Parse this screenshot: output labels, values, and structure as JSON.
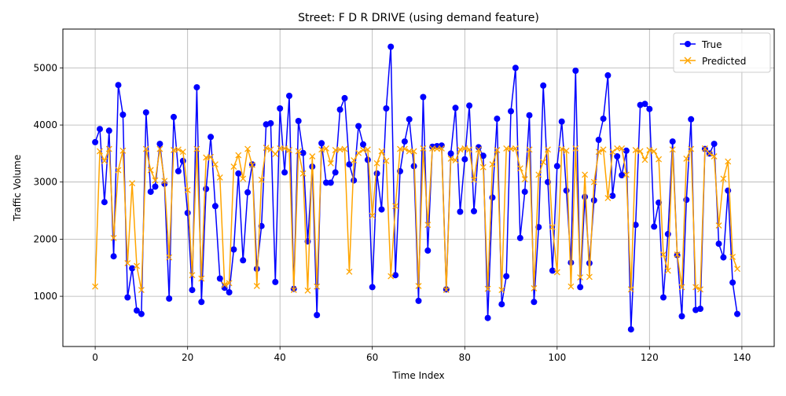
{
  "chart_data": {
    "type": "line",
    "title": "Street: F D R DRIVE (using demand feature)",
    "xlabel": "Time Index",
    "ylabel": "Traffic Volume",
    "xlim": [
      -7,
      147
    ],
    "ylim": [
      120,
      5680
    ],
    "x_ticks": [
      0,
      20,
      40,
      60,
      80,
      100,
      120,
      140
    ],
    "y_ticks": [
      1000,
      2000,
      3000,
      4000,
      5000
    ],
    "grid": true,
    "legend_position": "top-right",
    "series": [
      {
        "name": "True",
        "color": "#0000ff",
        "marker": "circle",
        "values": [
          3700,
          3930,
          2650,
          3900,
          1700,
          4700,
          4180,
          980,
          1490,
          750,
          690,
          4220,
          2830,
          2920,
          3670,
          2970,
          960,
          4140,
          3190,
          3370,
          2460,
          1110,
          4660,
          900,
          2880,
          3790,
          2580,
          1310,
          1150,
          1070,
          1820,
          3150,
          1630,
          2820,
          3310,
          1480,
          2230,
          4010,
          4030,
          1250,
          4290,
          3170,
          4510,
          1130,
          4070,
          3510,
          1960,
          3270,
          670,
          3680,
          2990,
          2990,
          3170,
          4270,
          4470,
          3310,
          3030,
          3980,
          3660,
          3390,
          1160,
          3150,
          2520,
          4290,
          5370,
          1370,
          3190,
          3710,
          4100,
          3280,
          920,
          4490,
          1800,
          3620,
          3630,
          3640,
          1120,
          3500,
          4300,
          2480,
          3400,
          4340,
          2490,
          3610,
          3460,
          620,
          2730,
          4110,
          860,
          1350,
          4240,
          5000,
          2020,
          2830,
          4170,
          900,
          2210,
          4690,
          3000,
          1450,
          3280,
          4060,
          2850,
          1590,
          4950,
          1160,
          2740,
          1580,
          2680,
          3740,
          4110,
          4870,
          2760,
          3450,
          3120,
          3550,
          420,
          2250,
          4350,
          4370,
          4280,
          2220,
          2640,
          980,
          2090,
          3710,
          1720,
          650,
          2690,
          4100,
          760,
          780,
          3580,
          3500,
          3670,
          1920,
          1680,
          2850,
          1240,
          690
        ]
      },
      {
        "name": "Predicted",
        "color": "#ffa500",
        "marker": "x",
        "values": [
          1170,
          3540,
          3370,
          3580,
          2020,
          3210,
          3550,
          1580,
          2980,
          1530,
          1110,
          3580,
          3210,
          3030,
          3580,
          3020,
          1680,
          3560,
          3570,
          3530,
          2860,
          1370,
          3580,
          1310,
          3430,
          3440,
          3310,
          3080,
          1200,
          1230,
          3270,
          3470,
          3060,
          3580,
          3300,
          1180,
          3040,
          3600,
          3570,
          3490,
          3590,
          3590,
          3560,
          1110,
          3540,
          3150,
          1100,
          3450,
          1170,
          3570,
          3590,
          3330,
          3560,
          3570,
          3580,
          1430,
          3380,
          3510,
          3560,
          3570,
          2410,
          3330,
          3540,
          3370,
          1350,
          2580,
          3580,
          3580,
          3540,
          3540,
          1180,
          3590,
          2250,
          3590,
          3580,
          3590,
          1110,
          3410,
          3380,
          3570,
          3590,
          3570,
          3040,
          3570,
          3260,
          1130,
          3310,
          3560,
          1110,
          3590,
          3580,
          3590,
          3240,
          3050,
          3570,
          1140,
          3130,
          3350,
          3570,
          2210,
          1420,
          3580,
          3550,
          1170,
          3590,
          1330,
          3130,
          1340,
          3000,
          3530,
          3570,
          2720,
          3530,
          3590,
          3590,
          3130,
          1120,
          3560,
          3540,
          3390,
          3560,
          3540,
          3400,
          1730,
          1450,
          3570,
          1730,
          1160,
          3410,
          3580,
          1160,
          1120,
          3590,
          3500,
          3450,
          2240,
          3060,
          3360,
          1690,
          1480
        ]
      }
    ]
  }
}
